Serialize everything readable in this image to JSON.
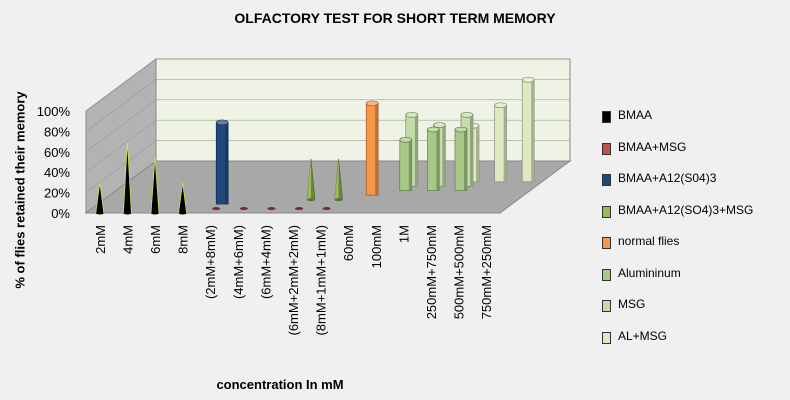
{
  "chart_data": {
    "type": "bar",
    "title": "OLFACTORY TEST FOR SHORT TERM MEMORY",
    "xlabel": "concentration In mM",
    "ylabel": "% of flies retained their memory",
    "ylim": [
      0,
      100
    ],
    "yticks": [
      "0%",
      "20%",
      "40%",
      "60%",
      "80%",
      "100%"
    ],
    "legend_position": "right",
    "categories": [
      "2mM",
      "4mM",
      "6mM",
      "8mM",
      "(2mM+8mM)",
      "(4mM+6mM)",
      "(6mM+4mM)",
      "(6mM+2mM+2mM)",
      "(8mM+1mM+1mM)",
      "60mM",
      "100mM",
      "1M",
      "250mM+750mM",
      "500mM+500mM",
      "750mM+250mM"
    ],
    "series": [
      {
        "name": "BMAA",
        "color": "#000000",
        "shape": "cone",
        "values": [
          30,
          70,
          55,
          30,
          null,
          null,
          null,
          null,
          null,
          null,
          null,
          null,
          null,
          null,
          null
        ]
      },
      {
        "name": "BMAA+MSG",
        "color": "#c0504d",
        "shape": "cone",
        "values": [
          null,
          null,
          null,
          null,
          0,
          0,
          0,
          0,
          0,
          null,
          null,
          null,
          null,
          null,
          null
        ]
      },
      {
        "name": "BMAA+A12(S04)3",
        "color": "#1f497d",
        "shape": "cylinder",
        "values": [
          null,
          null,
          null,
          null,
          80,
          null,
          null,
          null,
          null,
          null,
          null,
          null,
          null,
          null,
          null
        ]
      },
      {
        "name": "BMAA+A12(SO4)3+MSG",
        "color": "#9bbb59",
        "shape": "cone",
        "values": [
          null,
          null,
          null,
          null,
          null,
          null,
          null,
          40,
          40,
          null,
          null,
          null,
          null,
          null,
          null
        ]
      },
      {
        "name": "normal flies",
        "color": "#f79646",
        "shape": "cylinder",
        "values": [
          null,
          null,
          null,
          null,
          null,
          null,
          null,
          null,
          null,
          90,
          null,
          null,
          null,
          null,
          null
        ]
      },
      {
        "name": "Alumininum",
        "color": "#a8c888",
        "shape": "cylinder",
        "values": [
          null,
          null,
          null,
          null,
          null,
          null,
          null,
          null,
          null,
          null,
          50,
          60,
          60,
          null,
          null
        ]
      },
      {
        "name": "MSG",
        "color": "#c4dca8",
        "shape": "cylinder",
        "values": [
          null,
          null,
          null,
          null,
          null,
          null,
          null,
          null,
          null,
          null,
          70,
          60,
          70,
          null,
          null
        ]
      },
      {
        "name": "AL+MSG",
        "color": "#dde9c2",
        "shape": "cylinder",
        "values": [
          null,
          null,
          null,
          null,
          null,
          null,
          null,
          null,
          null,
          null,
          null,
          null,
          55,
          75,
          100
        ]
      }
    ]
  }
}
